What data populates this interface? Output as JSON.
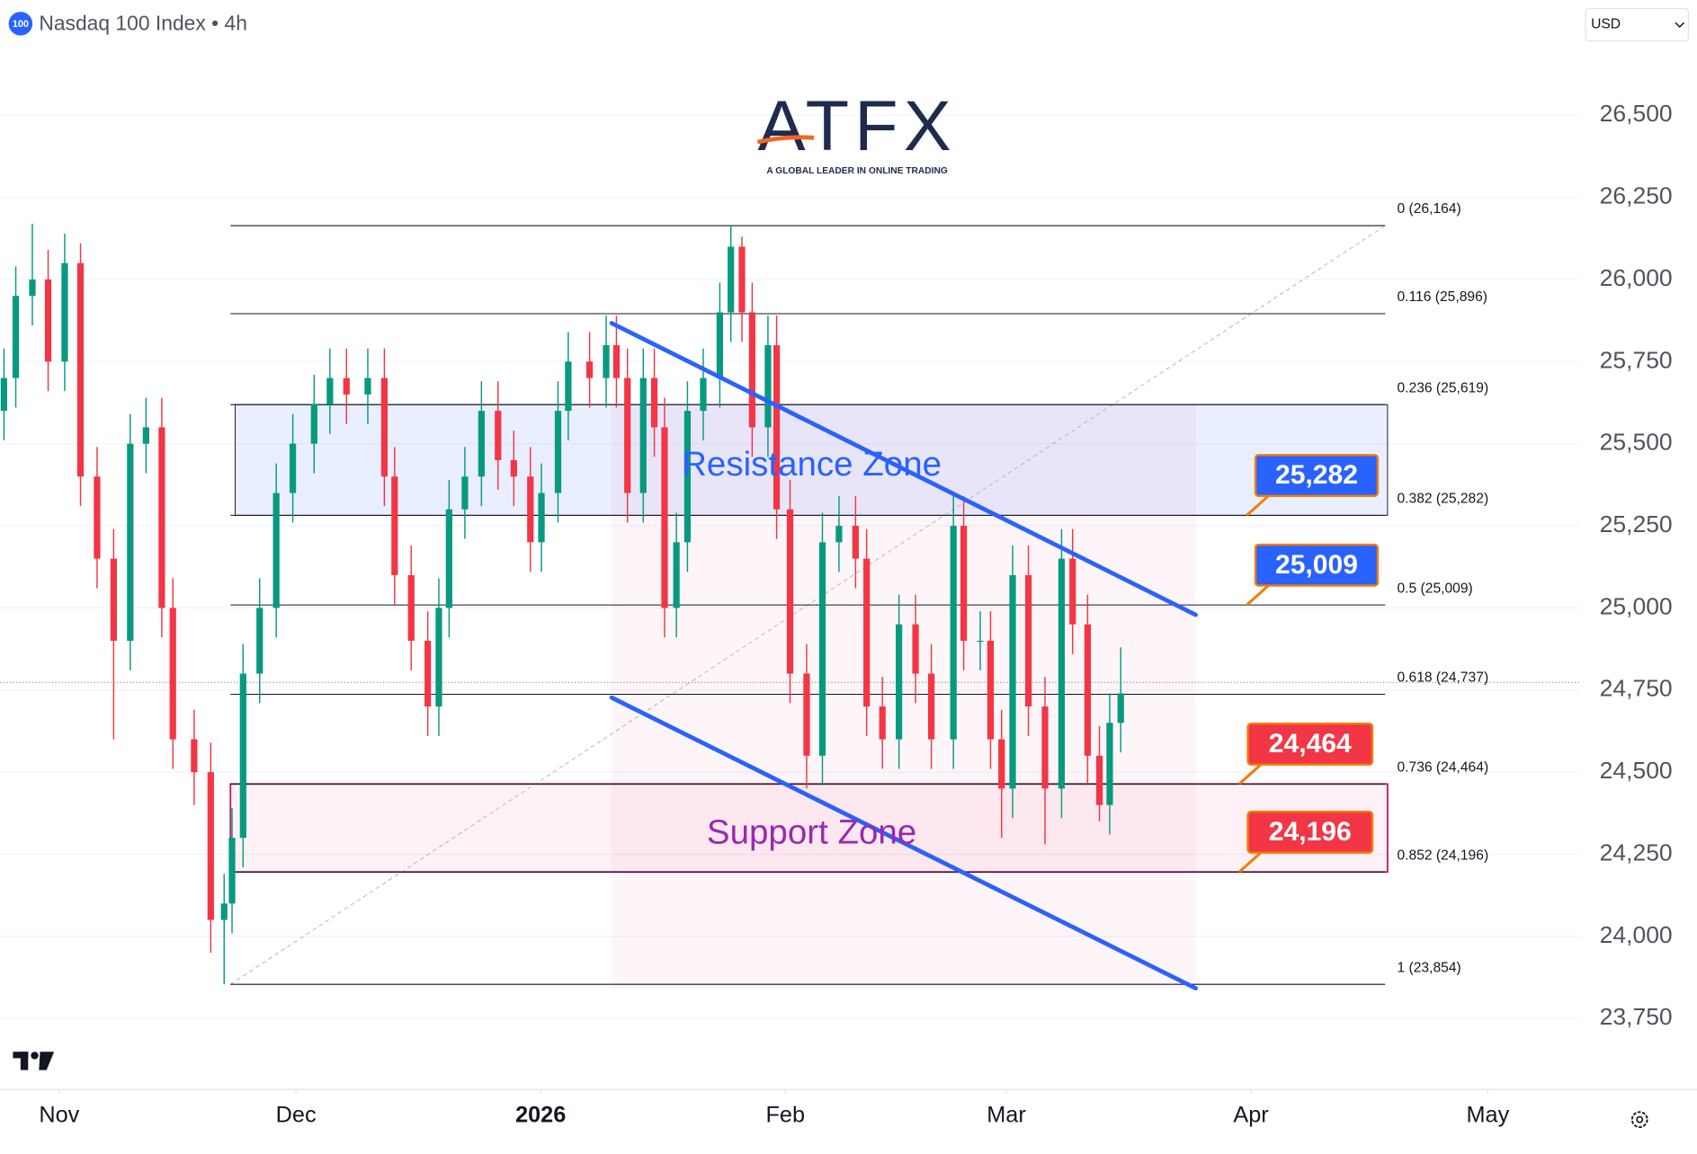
{
  "chart_data": {
    "type": "candlestick",
    "title": "Nasdaq 100 Index • 4h",
    "symbol_icon": "100",
    "currency": "USD",
    "logo": {
      "brand": "ATFX",
      "tagline": "A GLOBAL LEADER IN ONLINE TRADING"
    },
    "xlim": [
      -7.5,
      192.7
    ],
    "xticks": [
      {
        "value": 0,
        "label": "Nov"
      },
      {
        "value": 30,
        "label": "Dec"
      },
      {
        "value": 61,
        "label": "2026"
      },
      {
        "value": 92,
        "label": "Feb"
      },
      {
        "value": 120,
        "label": "Mar"
      },
      {
        "value": 151,
        "label": "Apr"
      },
      {
        "value": 181,
        "label": "May"
      }
    ],
    "ylim": [
      23534,
      26851
    ],
    "yticks": [
      {
        "value": 23750,
        "label": "23,750"
      },
      {
        "value": 24000,
        "label": "24,000"
      },
      {
        "value": 24250,
        "label": "24,250"
      },
      {
        "value": 24500,
        "label": "24,500"
      },
      {
        "value": 24750,
        "label": "24,750"
      },
      {
        "value": 25000,
        "label": "25,000"
      },
      {
        "value": 25250,
        "label": "25,250"
      },
      {
        "value": 25500,
        "label": "25,500"
      },
      {
        "value": 25750,
        "label": "25,750"
      },
      {
        "value": 26000,
        "label": "26,000"
      },
      {
        "value": 26250,
        "label": "26,250"
      },
      {
        "value": 26500,
        "label": "26,500"
      }
    ],
    "grid": true,
    "last_price": 24773,
    "candles": {
      "up_color": "#089981",
      "down_color": "#f23645",
      "x": [
        -7,
        -5.5,
        -3.4,
        -1.4,
        0.7,
        2.7,
        4.8,
        6.9,
        9,
        11,
        13,
        14.4,
        17.1,
        19.2,
        20.9,
        21.9,
        23.3,
        25.4,
        27.5,
        29.6,
        32.3,
        34.3,
        36.4,
        39.1,
        41.2,
        42.5,
        44.6,
        46.7,
        48.1,
        49.4,
        51.4,
        53.5,
        55.6,
        57.6,
        59.7,
        61.1,
        63.2,
        64.5,
        67.2,
        69.3,
        70.6,
        72,
        74,
        75.4,
        76.7,
        78.2,
        79.6,
        81.6,
        83.7,
        85.1,
        86.5,
        87.8,
        89.8,
        90.9,
        92.6,
        94.7,
        96.7,
        98.8,
        100.9,
        102.3,
        104.3,
        106.4,
        108.5,
        110.5,
        113.3,
        114.6,
        116.7,
        118,
        119.4,
        120.8,
        122.8,
        124.9,
        127,
        128.4,
        130.3,
        131.8,
        133.1,
        134.5
      ],
      "open": [
        25600,
        25700,
        25950,
        26000,
        25750,
        26050,
        25400,
        25150,
        24900,
        25500,
        25550,
        25000,
        24600,
        24500,
        24050,
        24100,
        24300,
        24800,
        25000,
        25350,
        25500,
        25620,
        25700,
        25650,
        25700,
        25400,
        25100,
        24900,
        24700,
        25000,
        25300,
        25400,
        25600,
        25450,
        25400,
        25200,
        25350,
        25600,
        25750,
        25700,
        25800,
        25700,
        25350,
        25700,
        25550,
        25000,
        25200,
        25600,
        25700,
        25900,
        26100,
        25900,
        25550,
        25800,
        25300,
        24800,
        24550,
        25200,
        25250,
        25150,
        24700,
        24600,
        24950,
        24800,
        24600,
        25250,
        24900,
        24900,
        24600,
        24450,
        25100,
        24700,
        24450,
        25150,
        24950,
        24550,
        24400,
        24650
      ],
      "high": [
        25790,
        26040,
        26170,
        26090,
        26140,
        26110,
        25490,
        25240,
        25590,
        25640,
        25640,
        25090,
        24690,
        24590,
        24190,
        24390,
        24890,
        25090,
        25440,
        25590,
        25710,
        25790,
        25790,
        25790,
        25790,
        25490,
        25190,
        24990,
        25090,
        25390,
        25490,
        25690,
        25690,
        25540,
        25490,
        25440,
        25690,
        25840,
        25840,
        25890,
        25890,
        25790,
        25790,
        25790,
        25640,
        25290,
        25690,
        25790,
        25990,
        26164,
        26130,
        25990,
        25890,
        25890,
        25390,
        24890,
        25290,
        25340,
        25340,
        25240,
        24790,
        25040,
        25040,
        24890,
        25340,
        25340,
        24990,
        24990,
        24690,
        25190,
        25190,
        24790,
        25240,
        25240,
        25040,
        24640,
        24740,
        24880
      ],
      "low": [
        25510,
        25610,
        25860,
        25660,
        25660,
        25310,
        25060,
        24600,
        24810,
        25410,
        24910,
        24510,
        24400,
        23950,
        23854,
        24010,
        24210,
        24710,
        24910,
        25260,
        25410,
        25530,
        25560,
        25560,
        25310,
        25010,
        24810,
        24610,
        24610,
        24910,
        25210,
        25310,
        25360,
        25310,
        25110,
        25110,
        25260,
        25510,
        25610,
        25610,
        25610,
        25260,
        25260,
        25460,
        24910,
        24910,
        25110,
        25510,
        25610,
        25810,
        25810,
        25460,
        25460,
        25210,
        24710,
        24450,
        24460,
        25110,
        25060,
        24610,
        24510,
        24510,
        24710,
        24510,
        24510,
        24810,
        24810,
        24510,
        24300,
        24360,
        24610,
        24280,
        24360,
        24860,
        24460,
        24350,
        24310,
        24560
      ],
      "close": [
        25700,
        25950,
        26000,
        25750,
        26050,
        25400,
        25150,
        24900,
        25500,
        25550,
        25000,
        24600,
        24500,
        24050,
        24100,
        24300,
        24800,
        25000,
        25350,
        25500,
        25620,
        25700,
        25650,
        25700,
        25400,
        25100,
        24900,
        24700,
        25000,
        25300,
        25400,
        25600,
        25450,
        25400,
        25200,
        25350,
        25600,
        25750,
        25700,
        25800,
        25700,
        25350,
        25700,
        25550,
        25000,
        25200,
        25600,
        25700,
        25900,
        26100,
        25900,
        25550,
        25800,
        25300,
        24800,
        24550,
        25200,
        25250,
        25150,
        24700,
        24600,
        24950,
        24800,
        24600,
        25250,
        24900,
        24900,
        24600,
        24450,
        25100,
        24700,
        24450,
        25150,
        24950,
        24550,
        24400,
        24650,
        24740
      ]
    },
    "fibonacci": {
      "x": [
        21.7,
        168
      ],
      "levels": [
        {
          "value": 26164,
          "label": "0 (26,164)"
        },
        {
          "value": 25896,
          "label": "0.116 (25,896)"
        },
        {
          "value": 25619,
          "label": "0.236 (25,619)"
        },
        {
          "value": 25282,
          "label": "0.382 (25,282)"
        },
        {
          "value": 25009,
          "label": "0.5 (25,009)"
        },
        {
          "value": 24737,
          "label": "0.618 (24,737)"
        },
        {
          "value": 24464,
          "label": "0.736 (24,464)"
        },
        {
          "value": 24196,
          "label": "0.852 (24,196)"
        },
        {
          "value": 23854,
          "label": "1 (23,854)"
        }
      ]
    },
    "zones": [
      {
        "label": "Resistance Zone",
        "range": [
          25282,
          25619
        ],
        "x": [
          22.3,
          168.3
        ],
        "color": "#2962ff"
      },
      {
        "label": "Support Zone",
        "range": [
          24196,
          24464
        ],
        "x": [
          21.7,
          168.3
        ],
        "color": "#9c27b0"
      }
    ],
    "channel": {
      "x": [
        70,
        144
      ],
      "upper": [
        25867,
        24979
      ],
      "lower": [
        24727,
        23842
      ],
      "color": "#2962ff"
    },
    "price_labels": [
      {
        "value": 25282,
        "label": "25,282",
        "color": "#2962ff"
      },
      {
        "value": 25009,
        "label": "25,009",
        "color": "#2962ff"
      },
      {
        "value": 24464,
        "label": "24,464",
        "color": "#f23645"
      },
      {
        "value": 24196,
        "label": "24,196",
        "color": "#f23645"
      }
    ]
  }
}
